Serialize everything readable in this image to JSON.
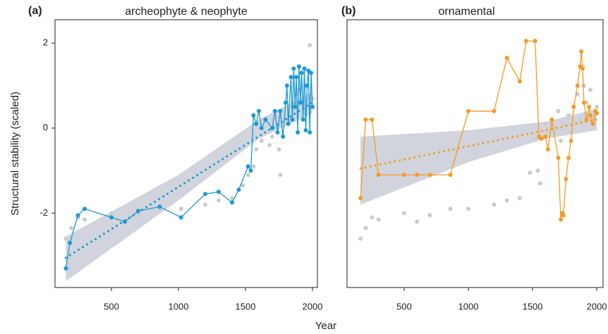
{
  "chart_data": [
    {
      "type": "line",
      "panel": "(a)",
      "title": "archeophyte & neophyte",
      "ylabel": "Structural stability (scaled)",
      "xlabel": "Year",
      "xlim": [
        79,
        2037
      ],
      "ylim": [
        -3.75,
        2.55
      ],
      "xticks": [
        500,
        1000,
        1500,
        2000
      ],
      "yticks": [
        -2,
        0,
        2
      ],
      "band": {
        "color": "#c9ccd6",
        "x": [
          160,
          1000,
          1600,
          2000
        ],
        "lower": [
          -3.6,
          -1.7,
          -0.25,
          0.35
        ],
        "upper": [
          -2.55,
          -1.1,
          0.2,
          0.85
        ]
      },
      "trend": {
        "color": "#1a9ad6",
        "x": [
          160,
          2000
        ],
        "values": [
          -3.05,
          0.6
        ]
      },
      "series": [
        {
          "color": "#cccccc",
          "line": false,
          "x": [
            160,
            200,
            250,
            300,
            500,
            600,
            700,
            860,
            1020,
            1200,
            1300,
            1400,
            1480,
            1520,
            1560,
            1580,
            1620,
            1680,
            1700,
            1750,
            1760,
            1780,
            1800,
            1850,
            1880,
            1900,
            1950,
            1980,
            2000
          ],
          "values": [
            -2.6,
            -2.35,
            -2.1,
            -2.15,
            -2.0,
            -2.2,
            -2.05,
            -1.9,
            -1.9,
            -1.8,
            -1.7,
            -1.65,
            -1.35,
            -1.1,
            -0.9,
            -0.5,
            -0.3,
            -0.4,
            -0.2,
            -0.5,
            -1.1,
            -0.2,
            0.2,
            0.5,
            0.8,
            0.9,
            1.0,
            1.95,
            0.7
          ]
        },
        {
          "color": "#1a9ad6",
          "line": true,
          "x": [
            160,
            190,
            250,
            300,
            500,
            600,
            700,
            860,
            1020,
            1200,
            1300,
            1400,
            1450,
            1520,
            1540,
            1560,
            1580,
            1600,
            1620,
            1650,
            1700,
            1720,
            1740,
            1760,
            1780,
            1800,
            1810,
            1820,
            1840,
            1850,
            1860,
            1870,
            1880,
            1890,
            1900,
            1910,
            1920,
            1930,
            1940,
            1950,
            1960,
            1970,
            1980,
            1990,
            2000
          ],
          "values": [
            -3.3,
            -2.7,
            -2.05,
            -1.9,
            -2.1,
            -2.2,
            -1.95,
            -1.85,
            -2.1,
            -1.55,
            -1.5,
            -1.75,
            -1.45,
            -0.9,
            -1.0,
            0.3,
            0.1,
            0.4,
            0.0,
            0.2,
            0.0,
            0.4,
            -0.1,
            0.4,
            -0.2,
            0.6,
            1.0,
            0.1,
            1.2,
            0.2,
            1.4,
            0.5,
            1.2,
            -0.1,
            1.45,
            0.6,
            1.3,
            0.2,
            1.4,
            -0.05,
            1.0,
            1.35,
            -0.1,
            1.3,
            0.5
          ]
        }
      ]
    },
    {
      "type": "line",
      "panel": "(b)",
      "title": "ornamental",
      "xlim": [
        55,
        2049
      ],
      "ylim": [
        -3.75,
        2.55
      ],
      "xticks": [
        500,
        1000,
        1500,
        2000
      ],
      "band": {
        "color": "#c9ccd6",
        "x": [
          160,
          1000,
          1600,
          2000
        ],
        "lower": [
          -1.8,
          -0.8,
          -0.25,
          -0.05
        ],
        "upper": [
          -0.2,
          -0.05,
          0.15,
          0.45
        ]
      },
      "trend": {
        "color": "#f29b26",
        "x": [
          160,
          2000
        ],
        "values": [
          -0.95,
          0.2
        ]
      },
      "series": [
        {
          "color": "#cccccc",
          "line": false,
          "x": [
            160,
            200,
            250,
            300,
            500,
            600,
            700,
            860,
            1000,
            1200,
            1300,
            1400,
            1480,
            1540,
            1560,
            1600,
            1650,
            1700,
            1720,
            1750,
            1780,
            1800,
            1820,
            1850,
            1870,
            1900,
            1920,
            1950,
            1980,
            2000
          ],
          "values": [
            -2.6,
            -2.35,
            -2.1,
            -2.15,
            -2.0,
            -2.2,
            -2.05,
            -1.9,
            -1.9,
            -1.8,
            -1.7,
            -1.65,
            -1.05,
            -1.0,
            -1.3,
            0.1,
            0.2,
            0.4,
            -0.3,
            0.1,
            0.3,
            -0.1,
            0.5,
            0.8,
            0.2,
            1.0,
            0.6,
            0.9,
            0.2,
            0.5
          ]
        },
        {
          "color": "#f29b26",
          "line": true,
          "x": [
            160,
            200,
            250,
            300,
            500,
            600,
            700,
            860,
            1000,
            1200,
            1300,
            1400,
            1450,
            1520,
            1550,
            1570,
            1600,
            1620,
            1650,
            1700,
            1720,
            1730,
            1740,
            1760,
            1780,
            1800,
            1820,
            1850,
            1870,
            1880,
            1890,
            1900,
            1920,
            1940,
            1950,
            1970,
            1990,
            2000
          ],
          "values": [
            -1.65,
            0.2,
            0.2,
            -1.1,
            -1.1,
            -1.1,
            -1.1,
            -1.1,
            0.4,
            0.4,
            1.65,
            1.1,
            2.05,
            2.05,
            -0.2,
            -0.25,
            -0.2,
            -0.5,
            0.2,
            -0.7,
            -2.15,
            -2.0,
            -2.05,
            -1.2,
            -0.7,
            -0.3,
            0.5,
            1.0,
            1.45,
            1.8,
            1.4,
            0.6,
            0.2,
            0.5,
            0.3,
            0.1,
            0.4,
            0.35
          ]
        }
      ]
    }
  ]
}
